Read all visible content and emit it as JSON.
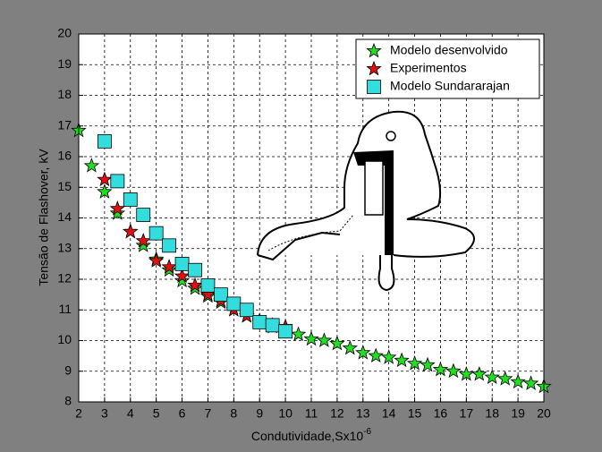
{
  "chart_data": {
    "type": "scatter",
    "xlabel": "Condutividade,Sx10",
    "xlabel_exponent": "-6",
    "ylabel": "Tensão de Flashover, kV",
    "xlim": [
      2,
      20
    ],
    "ylim": [
      8,
      20
    ],
    "xticks": [
      2,
      3,
      4,
      5,
      6,
      7,
      8,
      9,
      10,
      11,
      12,
      13,
      14,
      15,
      16,
      17,
      18,
      19,
      20
    ],
    "yticks": [
      8,
      9,
      10,
      11,
      12,
      13,
      14,
      15,
      16,
      17,
      18,
      19,
      20
    ],
    "grid": true,
    "legend": "top-right",
    "series": [
      {
        "name": "Modelo desenvolvido",
        "color": "#22dd22",
        "marker": "star",
        "x": [
          2,
          2.5,
          3,
          3.5,
          4,
          4.5,
          5,
          5.5,
          6,
          6.5,
          7,
          7.5,
          8,
          8.5,
          9,
          9.5,
          10,
          10.5,
          11,
          11.5,
          12,
          12.5,
          13,
          13.5,
          14,
          14.5,
          15,
          15.5,
          16,
          16.5,
          17,
          17.5,
          18,
          18.5,
          19,
          19.5,
          20
        ],
        "values": [
          16.85,
          15.7,
          14.85,
          14.15,
          13.55,
          13.1,
          12.65,
          12.3,
          11.95,
          11.7,
          11.45,
          11.25,
          11.0,
          10.8,
          10.6,
          10.45,
          10.3,
          10.2,
          10.05,
          10.0,
          9.9,
          9.75,
          9.6,
          9.5,
          9.45,
          9.35,
          9.25,
          9.2,
          9.05,
          9.0,
          8.9,
          8.9,
          8.8,
          8.75,
          8.65,
          8.6,
          8.5
        ]
      },
      {
        "name": "Experimentos",
        "color": "#e01010",
        "marker": "star",
        "x": [
          3,
          3.5,
          4,
          4.5,
          5,
          5.5,
          6,
          6.5,
          7,
          7.5,
          8,
          8.5,
          9,
          9.5,
          10
        ],
        "values": [
          15.25,
          14.3,
          13.55,
          13.25,
          12.6,
          12.4,
          12.1,
          11.8,
          11.5,
          11.3,
          11.0,
          10.8,
          10.65,
          10.5,
          10.45
        ]
      },
      {
        "name": "Modelo Sundararajan",
        "color": "#33dddd",
        "marker": "square",
        "x": [
          3,
          3.5,
          4,
          4.5,
          5,
          5.5,
          6,
          6.5,
          7,
          7.5,
          8,
          8.5,
          9,
          9.5,
          10
        ],
        "values": [
          16.5,
          15.2,
          14.6,
          14.1,
          13.5,
          13.1,
          12.5,
          12.3,
          11.8,
          11.5,
          11.2,
          11.0,
          10.6,
          10.5,
          10.3
        ]
      }
    ]
  }
}
